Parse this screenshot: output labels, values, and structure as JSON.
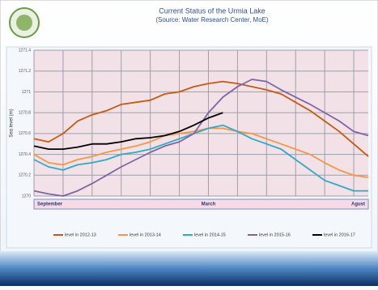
{
  "chart_data": {
    "type": "line",
    "title": "Current Status of the Urmia Lake",
    "subtitle": "(Source: Water Research Center, MoE)",
    "y_label": "Sea level (m)",
    "categories": [
      "September",
      null,
      null,
      null,
      null,
      null,
      null,
      null,
      null,
      null,
      null,
      null,
      "March",
      null,
      null,
      null,
      null,
      null,
      null,
      null,
      null,
      null,
      null,
      "Agust"
    ],
    "ylim": [
      1270,
      1271.4
    ],
    "yticks": [
      1270,
      1270.2,
      1270.4,
      1270.6,
      1270.8,
      1271,
      1271.2,
      1271.4
    ],
    "grid": true,
    "legend": "bottom",
    "series": [
      {
        "name": "level in 2012-13",
        "color": "#c55a11",
        "values": [
          1270.55,
          1270.52,
          1270.6,
          1270.72,
          1270.78,
          1270.82,
          1270.88,
          1270.9,
          1270.92,
          1270.98,
          1271.0,
          1271.05,
          1271.08,
          1271.1,
          1271.08,
          1271.05,
          1271.02,
          1270.98,
          1270.9,
          1270.82,
          1270.72,
          1270.62,
          1270.5,
          1270.38
        ]
      },
      {
        "name": "level in 2013-14",
        "color": "#f79646",
        "values": [
          1270.4,
          1270.32,
          1270.3,
          1270.35,
          1270.38,
          1270.42,
          1270.45,
          1270.48,
          1270.52,
          1270.58,
          1270.6,
          1270.62,
          1270.65,
          1270.65,
          1270.62,
          1270.6,
          1270.55,
          1270.5,
          1270.45,
          1270.4,
          1270.32,
          1270.25,
          1270.2,
          1270.18
        ]
      },
      {
        "name": "level in 2014-15",
        "color": "#31a9c4",
        "values": [
          1270.35,
          1270.28,
          1270.25,
          1270.3,
          1270.32,
          1270.35,
          1270.4,
          1270.42,
          1270.45,
          1270.5,
          1270.55,
          1270.6,
          1270.65,
          1270.68,
          1270.62,
          1270.55,
          1270.5,
          1270.45,
          1270.35,
          1270.25,
          1270.15,
          1270.1,
          1270.05,
          1270.05
        ]
      },
      {
        "name": "level in 2015-16",
        "color": "#8064a2",
        "values": [
          1270.05,
          1270.02,
          1270.0,
          1270.05,
          1270.12,
          1270.2,
          1270.28,
          1270.35,
          1270.42,
          1270.48,
          1270.52,
          1270.6,
          1270.8,
          1270.95,
          1271.05,
          1271.12,
          1271.1,
          1271.02,
          1270.95,
          1270.88,
          1270.8,
          1270.72,
          1270.62,
          1270.58
        ]
      },
      {
        "name": "level in 2016-17",
        "color": "#000000",
        "values": [
          1270.48,
          1270.45,
          1270.45,
          1270.47,
          1270.5,
          1270.5,
          1270.52,
          1270.55,
          1270.56,
          1270.58,
          1270.62,
          1270.68,
          1270.75,
          1270.8,
          null,
          null,
          null,
          null,
          null,
          null,
          null,
          null,
          null,
          null
        ]
      }
    ]
  }
}
